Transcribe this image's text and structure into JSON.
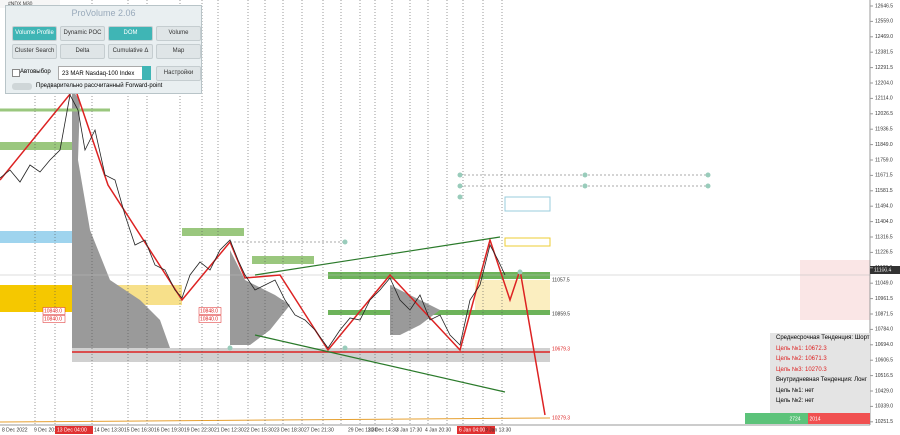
{
  "symbol": "#NDX,M30",
  "panel": {
    "title": "ProVolume 2.06",
    "buttons": [
      [
        "Volume Profile",
        "Dynamic POC",
        "DOM",
        "Volume"
      ],
      [
        "Cluster Search",
        "Delta",
        "Cumulative Δ",
        "Map"
      ]
    ],
    "autoselect": "Автовыбор",
    "instrument": "23 MAR Nasdaq-100 Index",
    "settings": "Настройки",
    "forward": "Предварительно рассчитанный Forward-point"
  },
  "price_axis": [
    "12646.5",
    "12559.0",
    "12469.0",
    "12381.5",
    "12291.5",
    "12204.0",
    "12114.0",
    "12026.5",
    "11936.5",
    "11849.0",
    "11759.0",
    "11671.5",
    "11581.5",
    "11494.0",
    "11404.0",
    "11316.5",
    "11226.5",
    "11139.0",
    "11049.0",
    "10961.5",
    "10871.5",
    "10784.0",
    "10694.0",
    "10606.5",
    "10516.5",
    "10429.0",
    "10339.0",
    "10251.5"
  ],
  "current_price": "11100.4",
  "dates": [
    "8 Dec 2022",
    "9 Dec 20:30",
    "13 Dec 04:00",
    "14 Dec 13:30",
    "15 Dec 16:30",
    "16 Dec 19:30",
    "19 Dec 22:30",
    "21 Dec 12:30",
    "22 Dec 15:30",
    "23 Dec 18:30",
    "27 Dec 21:30",
    "29 Dec 11:30",
    "30 Dec 14:30",
    "3 Jan 17:30",
    "4 Jan 20:30",
    "6 Jan 04:00",
    "9 Jan 13:30"
  ],
  "levels": [
    "11057.5",
    "10859.5",
    "10679.3",
    "10279.3"
  ],
  "boxes": [
    "10848.0",
    "10840.0",
    "10848.0",
    "10840.0"
  ],
  "info": {
    "mid_trend": "Среднесрочная Тенденция: Шорт",
    "mid_targets": [
      "Цель №1:  10672.3",
      "Цель №2:  10671.3",
      "Цель №3:  10270.3"
    ],
    "intra_trend": "Внутридневная Тенденция: Лонг",
    "intra_targets": [
      "Цель №1:  нет",
      "Цель №2:  нет"
    ]
  },
  "footer": {
    "buy": "2724",
    "sell": "2014"
  }
}
